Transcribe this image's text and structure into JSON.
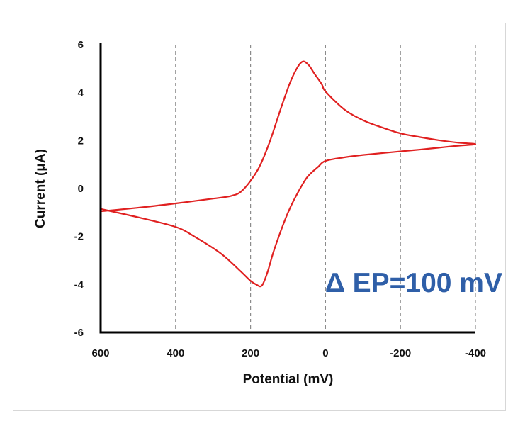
{
  "chart_data": {
    "type": "line",
    "xlabel": "Potential (mV)",
    "ylabel": "Current (μA)",
    "xlim": [
      600,
      -400
    ],
    "ylim": [
      -6,
      6
    ],
    "x_reversed": true,
    "xticks": [
      600,
      400,
      200,
      0,
      -200,
      -400
    ],
    "yticks": [
      6,
      4,
      2,
      0,
      -2,
      -4,
      -6
    ],
    "grid": "vertical dashed",
    "color": "#e02020",
    "annotation": "Δ EP=100 mV",
    "annotation_color": "#2f5fa8",
    "series": [
      {
        "points": [
          [
            600,
            -0.95
          ],
          [
            500,
            -0.8
          ],
          [
            400,
            -0.62
          ],
          [
            300,
            -0.42
          ],
          [
            250,
            -0.3
          ],
          [
            220,
            -0.05
          ],
          [
            180,
            0.8
          ],
          [
            150,
            1.9
          ],
          [
            120,
            3.3
          ],
          [
            95,
            4.4
          ],
          [
            75,
            5.05
          ],
          [
            60,
            5.3
          ],
          [
            45,
            5.15
          ],
          [
            30,
            4.8
          ],
          [
            10,
            4.35
          ],
          [
            0,
            4.05
          ],
          [
            -50,
            3.3
          ],
          [
            -100,
            2.85
          ],
          [
            -150,
            2.55
          ],
          [
            -200,
            2.3
          ],
          [
            -250,
            2.15
          ],
          [
            -300,
            2.02
          ],
          [
            -350,
            1.92
          ],
          [
            -400,
            1.85
          ],
          [
            -350,
            1.78
          ],
          [
            -300,
            1.7
          ],
          [
            -250,
            1.62
          ],
          [
            -200,
            1.55
          ],
          [
            -100,
            1.4
          ],
          [
            -50,
            1.3
          ],
          [
            0,
            1.15
          ],
          [
            20,
            0.9
          ],
          [
            50,
            0.45
          ],
          [
            80,
            -0.35
          ],
          [
            100,
            -1.0
          ],
          [
            120,
            -1.8
          ],
          [
            140,
            -2.7
          ],
          [
            155,
            -3.5
          ],
          [
            170,
            -4.05
          ],
          [
            185,
            -4.0
          ],
          [
            200,
            -3.85
          ],
          [
            230,
            -3.4
          ],
          [
            280,
            -2.7
          ],
          [
            350,
            -2.0
          ],
          [
            400,
            -1.6
          ],
          [
            500,
            -1.2
          ],
          [
            600,
            -0.85
          ]
        ]
      }
    ]
  }
}
